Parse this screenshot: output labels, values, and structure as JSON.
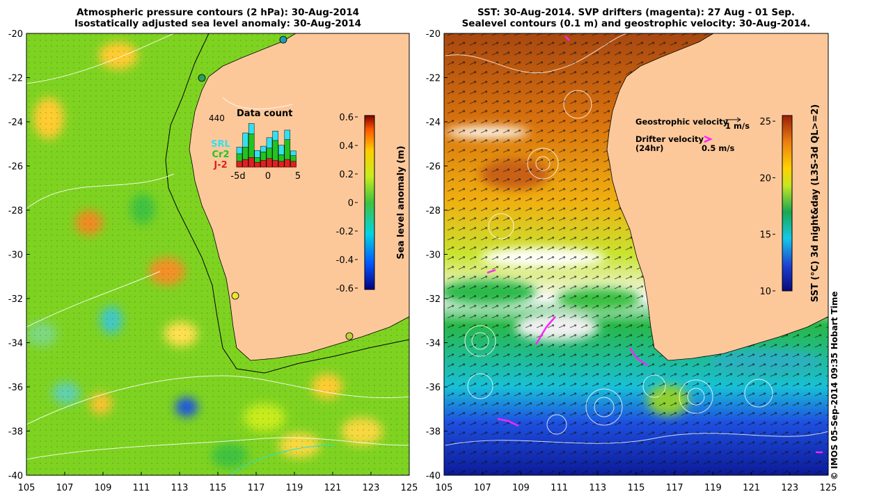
{
  "left_panel": {
    "title_line1": "Atmospheric pressure contours (2 hPa): 30-Aug-2014",
    "title_line2": "Isostatically adjusted sea level anomaly: 30-Aug-2014",
    "inset": {
      "title": "Data count",
      "max_label": "440",
      "missions": [
        {
          "label": "SRL",
          "color": "#33e0f0"
        },
        {
          "label": "Cr2",
          "color": "#22c422"
        },
        {
          "label": "J-2",
          "color": "#e02020"
        }
      ],
      "x_ticks": [
        "-5d",
        "0",
        "5"
      ],
      "bars": [
        {
          "day": -5,
          "j2": 0.12,
          "cr2": 0.28,
          "srl": 0.42
        },
        {
          "day": -4,
          "j2": 0.16,
          "cr2": 0.42,
          "srl": 0.72
        },
        {
          "day": -3,
          "j2": 0.2,
          "cr2": 0.7,
          "srl": 0.92
        },
        {
          "day": -2,
          "j2": 0.1,
          "cr2": 0.2,
          "srl": 0.35
        },
        {
          "day": -1,
          "j2": 0.14,
          "cr2": 0.32,
          "srl": 0.44
        },
        {
          "day": 0,
          "j2": 0.18,
          "cr2": 0.4,
          "srl": 0.62
        },
        {
          "day": 1,
          "j2": 0.14,
          "cr2": 0.56,
          "srl": 0.76
        },
        {
          "day": 2,
          "j2": 0.12,
          "cr2": 0.26,
          "srl": 0.46
        },
        {
          "day": 3,
          "j2": 0.16,
          "cr2": 0.58,
          "srl": 0.78
        },
        {
          "day": 4,
          "j2": 0.12,
          "cr2": 0.24,
          "srl": 0.34
        }
      ]
    },
    "colorbar": {
      "label": "Sea level anomaly (m)",
      "ticks": [
        "0.6",
        "0.4",
        "0.2",
        "0",
        "-0.2",
        "-0.4",
        "-0.6"
      ],
      "range": [
        -0.6,
        0.6
      ]
    }
  },
  "right_panel": {
    "title_line1": "SST: 30-Aug-2014. SVP drifters (magenta): 27 Aug - 01 Sep.",
    "title_line2": "Sealevel contours (0.1 m) and geostrophic velocity: 30-Aug-2014.",
    "legend": {
      "geostrophic_label": "Geostrophic velocity",
      "geostrophic_scale": "1 m/s",
      "drifter_label": "Drifter velocity",
      "drifter_sub": "(24hr)",
      "drifter_scale": "0.5 m/s"
    },
    "colorbar": {
      "label": "SST (°C) 3d night&day (L3S-3d QL>=2)",
      "ticks": [
        "25",
        "20",
        "15",
        "10"
      ],
      "range": [
        10,
        25.5
      ]
    }
  },
  "axes": {
    "lat_ticks": [
      "-20",
      "-22",
      "-24",
      "-26",
      "-28",
      "-30",
      "-32",
      "-34",
      "-36",
      "-38",
      "-40"
    ],
    "lon_ticks": [
      "105",
      "107",
      "109",
      "111",
      "113",
      "115",
      "117",
      "119",
      "121",
      "123",
      "125"
    ]
  },
  "credit": "© IMOS 05-Sep-2014 09:35 Hobart Time",
  "colors": {
    "land": "#fcc89a",
    "sla_mid": "#7ed321",
    "sst_warm": "#b8551a",
    "sst_cold": "#1e3fa8",
    "drifter": "#ff22ff"
  }
}
